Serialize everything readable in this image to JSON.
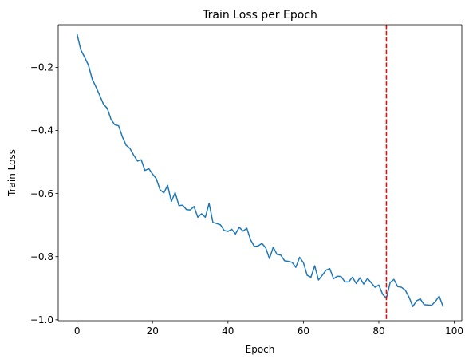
{
  "chart_data": {
    "type": "line",
    "title": "Train Loss per Epoch",
    "xlabel": "Epoch",
    "ylabel": "Train Loss",
    "xlim": [
      -5,
      102
    ],
    "ylim": [
      -1.003,
      -0.065
    ],
    "grid": false,
    "x_ticks": [
      0,
      20,
      40,
      60,
      80,
      100
    ],
    "x_tick_labels": [
      "0",
      "20",
      "40",
      "60",
      "80",
      "100"
    ],
    "y_ticks": [
      -1.0,
      -0.8,
      -0.6,
      -0.4,
      -0.2
    ],
    "y_tick_labels": [
      "−1.0",
      "−0.8",
      "−0.6",
      "−0.4",
      "−0.2"
    ],
    "series": [
      {
        "color": "#1f77b4",
        "x": [
          0,
          1,
          2,
          3,
          4,
          5,
          6,
          7,
          8,
          9,
          10,
          11,
          12,
          13,
          14,
          15,
          16,
          17,
          18,
          19,
          20,
          21,
          22,
          23,
          24,
          25,
          26,
          27,
          28,
          29,
          30,
          31,
          32,
          33,
          34,
          35,
          36,
          37,
          38,
          39,
          40,
          41,
          42,
          43,
          44,
          45,
          46,
          47,
          48,
          49,
          50,
          51,
          52,
          53,
          54,
          55,
          56,
          57,
          58,
          59,
          60,
          61,
          62,
          63,
          64,
          65,
          66,
          67,
          68,
          69,
          70,
          71,
          72,
          73,
          74,
          75,
          76,
          77,
          78,
          79,
          80,
          81,
          82,
          83,
          84,
          85,
          86,
          87,
          88,
          89,
          90,
          91,
          92,
          93,
          94,
          95,
          96,
          97
        ],
        "values": [
          -0.095,
          -0.145,
          -0.168,
          -0.193,
          -0.237,
          -0.262,
          -0.289,
          -0.317,
          -0.33,
          -0.365,
          -0.382,
          -0.385,
          -0.42,
          -0.447,
          -0.457,
          -0.478,
          -0.497,
          -0.493,
          -0.527,
          -0.521,
          -0.538,
          -0.553,
          -0.588,
          -0.598,
          -0.574,
          -0.625,
          -0.597,
          -0.638,
          -0.637,
          -0.651,
          -0.652,
          -0.641,
          -0.675,
          -0.664,
          -0.675,
          -0.631,
          -0.691,
          -0.695,
          -0.699,
          -0.717,
          -0.72,
          -0.713,
          -0.728,
          -0.707,
          -0.719,
          -0.71,
          -0.747,
          -0.768,
          -0.766,
          -0.758,
          -0.772,
          -0.806,
          -0.77,
          -0.793,
          -0.795,
          -0.813,
          -0.815,
          -0.818,
          -0.834,
          -0.802,
          -0.819,
          -0.859,
          -0.865,
          -0.829,
          -0.874,
          -0.859,
          -0.843,
          -0.838,
          -0.87,
          -0.862,
          -0.863,
          -0.88,
          -0.88,
          -0.865,
          -0.885,
          -0.867,
          -0.887,
          -0.869,
          -0.883,
          -0.897,
          -0.89,
          -0.919,
          -0.932,
          -0.882,
          -0.872,
          -0.895,
          -0.897,
          -0.906,
          -0.928,
          -0.958,
          -0.94,
          -0.934,
          -0.952,
          -0.953,
          -0.954,
          -0.942,
          -0.925,
          -0.957
        ]
      }
    ],
    "vline": {
      "x": 82,
      "color": "#ff0000",
      "style": "dashed"
    }
  }
}
